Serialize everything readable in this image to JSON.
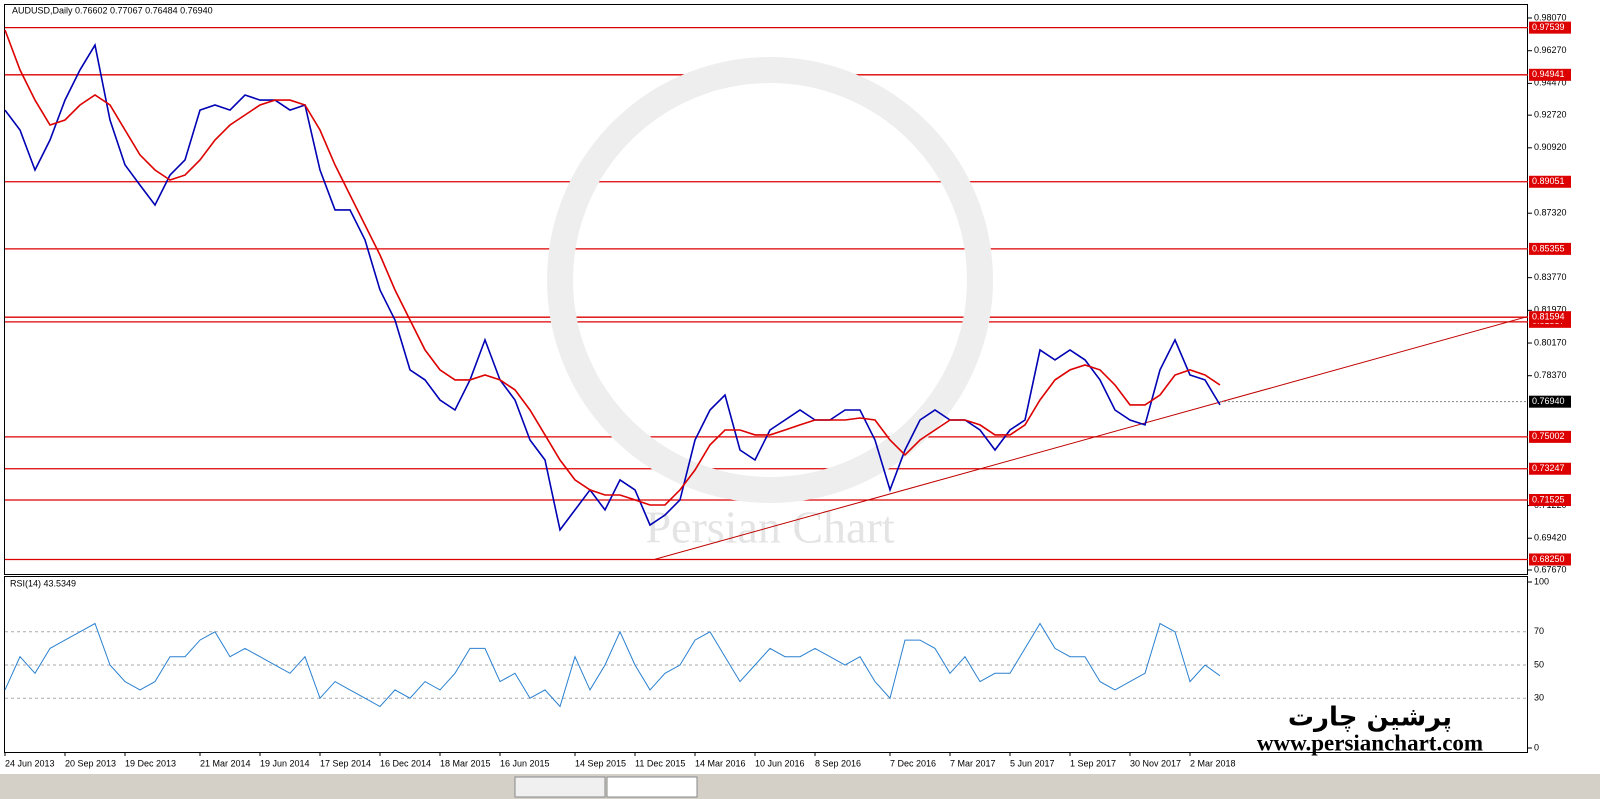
{
  "chart_data": [
    {
      "type": "line",
      "title": "AUDUSD,Daily 0.76602 0.77067 0.76484 0.76940",
      "categories": [
        "24 Jun 2013",
        null,
        null,
        null,
        "20 Sep 2013",
        null,
        null,
        null,
        "19 Dec 2013",
        null,
        null,
        null,
        null,
        "21 Mar 2014",
        null,
        null,
        null,
        "19 Jun 2014",
        null,
        null,
        null,
        "17 Sep 2014",
        null,
        null,
        null,
        "16 Dec 2014",
        null,
        null,
        null,
        "18 Mar 2015",
        null,
        null,
        null,
        "16 Jun 2015",
        null,
        null,
        null,
        null,
        "14 Sep 2015",
        null,
        null,
        null,
        "11 Dec 2015",
        null,
        null,
        null,
        "14 Mar 2016",
        null,
        null,
        null,
        "10 Jun 2016",
        null,
        null,
        null,
        "8 Sep 2016",
        null,
        null,
        null,
        null,
        "7 Dec 2016",
        null,
        null,
        null,
        "7 Mar 2017",
        null,
        null,
        null,
        "5 Jun 2017",
        null,
        null,
        null,
        "1 Sep 2017",
        null,
        null,
        null,
        "30 Nov 2017",
        null,
        null,
        null,
        "2 Mar 2018",
        null,
        null
      ],
      "series": [
        {
          "color": "#0000b4",
          "values": [
            0.93,
            0.919,
            0.897,
            0.9135,
            0.9355,
            0.9521,
            0.9658,
            0.9245,
            0.8998,
            0.8887,
            0.8777,
            0.8942,
            0.9025,
            0.93,
            0.9328,
            0.93,
            0.9383,
            0.9355,
            0.9355,
            0.93,
            0.9328,
            0.897,
            0.875,
            0.875,
            0.8585,
            0.8309,
            0.8144,
            0.7869,
            0.7814,
            0.7703,
            0.7648,
            0.7814,
            0.8034,
            0.7814,
            0.7703,
            0.7483,
            0.7373,
            0.6988,
            0.7098,
            0.7208,
            0.7098,
            0.7263,
            0.7208,
            0.7015,
            0.707,
            0.7153,
            0.7483,
            0.7648,
            0.7731,
            0.7428,
            0.7373,
            0.7538,
            0.7593,
            0.7648,
            0.7593,
            0.7593,
            0.7648,
            0.7648,
            0.7483,
            0.7208,
            0.7428,
            0.7593,
            0.7648,
            0.7593,
            0.7593,
            0.7538,
            0.7428,
            0.7538,
            0.7593,
            0.7979,
            0.7924,
            0.7979,
            0.7924,
            0.7814,
            0.7648,
            0.7593,
            0.7566,
            0.7869,
            0.8034,
            0.7841,
            0.7814,
            0.7676
          ]
        },
        {
          "color": "#dd0000",
          "values": [
            0.9741,
            0.9521,
            0.9355,
            0.9218,
            0.9245,
            0.9328,
            0.9383,
            0.9328,
            0.919,
            0.9053,
            0.897,
            0.8915,
            0.8942,
            0.9025,
            0.9135,
            0.9218,
            0.9273,
            0.9328,
            0.9355,
            0.9355,
            0.9328,
            0.919,
            0.8998,
            0.8832,
            0.8667,
            0.8502,
            0.8309,
            0.8144,
            0.7979,
            0.7869,
            0.7814,
            0.7814,
            0.7841,
            0.7814,
            0.7759,
            0.7648,
            0.7511,
            0.7373,
            0.7263,
            0.7208,
            0.718,
            0.718,
            0.7153,
            0.7125,
            0.7125,
            0.7208,
            0.7318,
            0.7456,
            0.7538,
            0.7538,
            0.7511,
            0.7511,
            0.7538,
            0.7566,
            0.7593,
            0.7593,
            0.7593,
            0.7604,
            0.7593,
            0.7483,
            0.7401,
            0.7483,
            0.7538,
            0.7593,
            0.7593,
            0.7566,
            0.7511,
            0.7511,
            0.7566,
            0.7703,
            0.7814,
            0.7869,
            0.7896,
            0.7869,
            0.7786,
            0.7676,
            0.7676,
            0.7731,
            0.7841,
            0.7869,
            0.7841,
            0.7786
          ]
        }
      ],
      "ylim": [
        0.6745,
        0.98786
      ],
      "yticks": [
        {
          "value": 0.9807,
          "label": "0.98070"
        },
        {
          "value": 0.9627,
          "label": "0.96270"
        },
        {
          "value": 0.9447,
          "label": "0.94470"
        },
        {
          "value": 0.9272,
          "label": "0.92720"
        },
        {
          "value": 0.9092,
          "label": "0.90920"
        },
        {
          "value": 0.8732,
          "label": "0.87320"
        },
        {
          "value": 0.8377,
          "label": "0.83770"
        },
        {
          "value": 0.8197,
          "label": "0.81970"
        },
        {
          "value": 0.8017,
          "label": "0.80170"
        },
        {
          "value": 0.7837,
          "label": "0.78370"
        },
        {
          "value": 0.7122,
          "label": "0.71220"
        },
        {
          "value": 0.6942,
          "label": "0.69420"
        },
        {
          "value": 0.6767,
          "label": "0.67670"
        }
      ],
      "levels": [
        0.97539,
        0.94941,
        0.89051,
        0.85355,
        0.81337,
        0.81594,
        0.75002,
        0.73247,
        0.71525,
        {
          "value": 0.6825,
          "label": "0.68250"
        }
      ],
      "level_color": "#dd0000",
      "last_price": {
        "value": 0.7694,
        "label": "0.76940"
      },
      "trendline": {
        "values": [
          0.6826,
          0.7569
        ],
        "color": "#c00000"
      },
      "annotations": [
        "Persian Chart",
        "پرشین چارت",
        "www.persianchart.com"
      ],
      "grid": false
    },
    {
      "type": "line",
      "title": "RSI(14) 43.5349",
      "series": [
        {
          "color": "#2a80d0",
          "values": [
            35,
            55,
            45,
            60,
            65,
            70,
            75,
            50,
            40,
            35,
            40,
            55,
            55,
            65,
            70,
            55,
            60,
            55,
            50,
            45,
            55,
            30,
            40,
            35,
            30,
            25,
            35,
            30,
            40,
            35,
            45,
            60,
            60,
            40,
            45,
            30,
            35,
            25,
            55,
            35,
            50,
            70,
            50,
            35,
            45,
            50,
            65,
            70,
            55,
            40,
            50,
            60,
            55,
            55,
            60,
            55,
            50,
            55,
            40,
            30,
            65,
            65,
            60,
            45,
            55,
            40,
            45,
            45,
            60,
            75,
            60,
            55,
            55,
            40,
            35,
            40,
            45,
            75,
            70,
            40,
            50,
            43.5
          ]
        }
      ],
      "ylim": [
        0,
        100
      ],
      "yticks": [
        0,
        30,
        50,
        70,
        100
      ],
      "grid": true
    }
  ]
}
